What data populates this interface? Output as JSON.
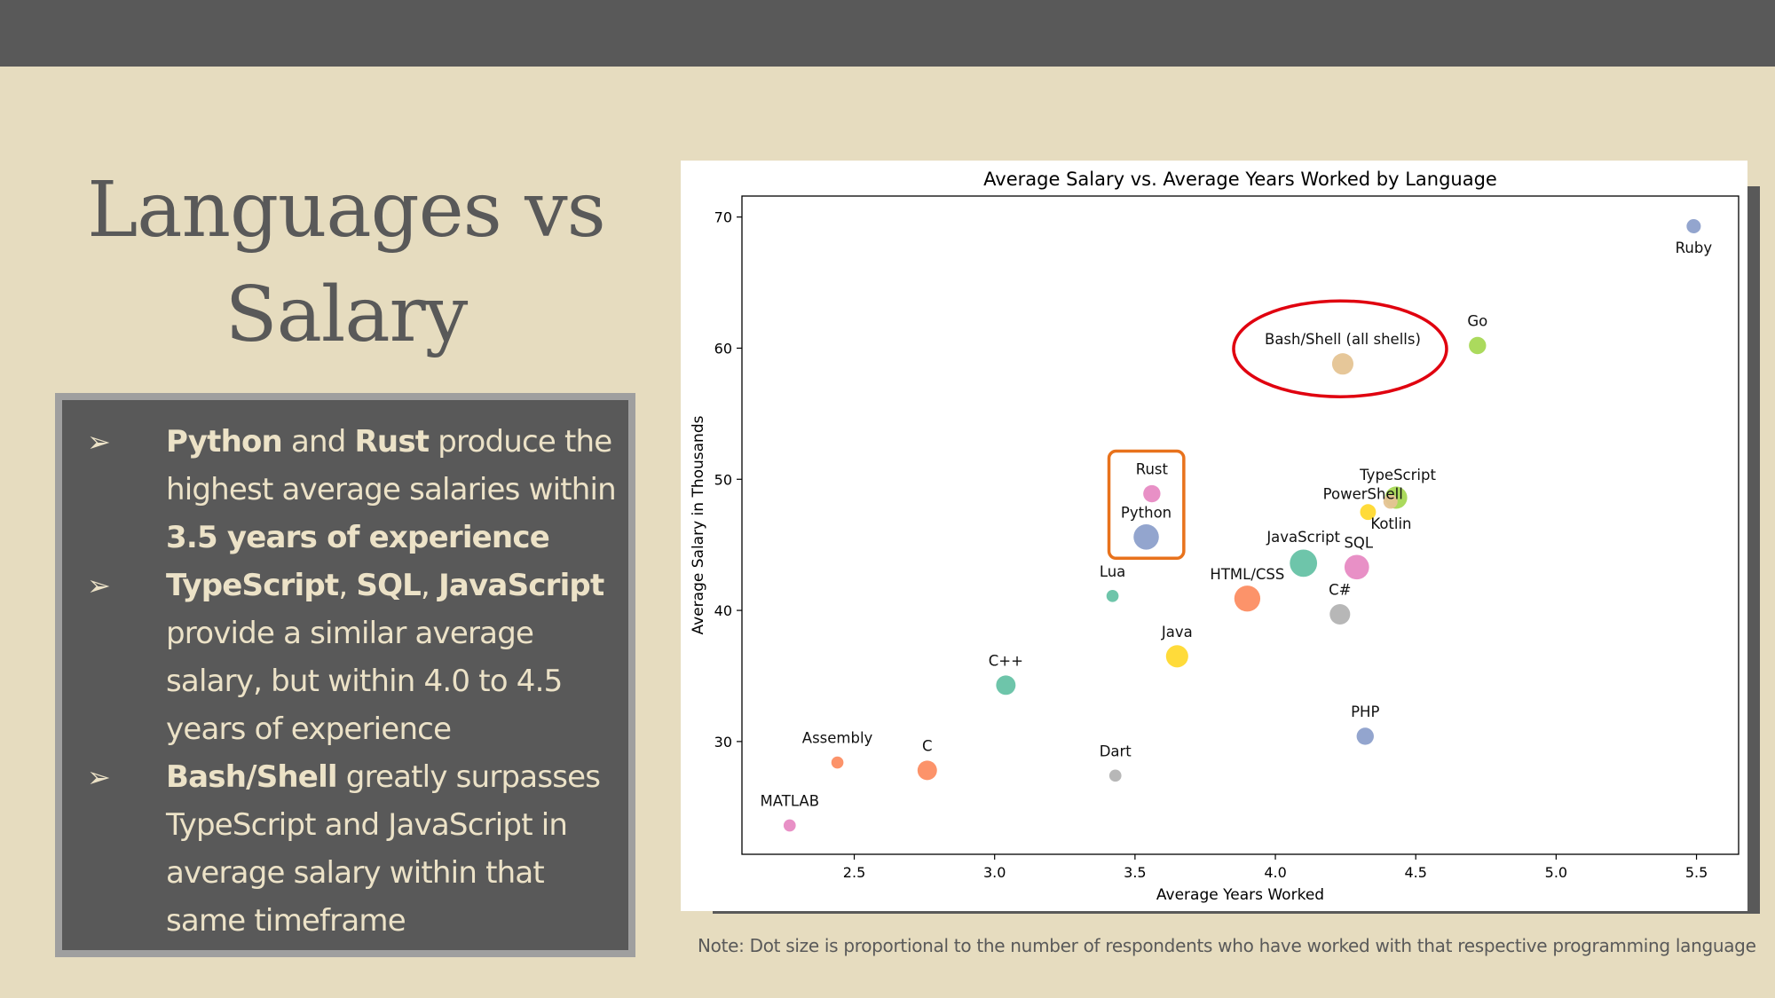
{
  "slide": {
    "title_line1": "Languages vs",
    "title_line2": "Salary",
    "bullets": [
      {
        "parts": [
          {
            "text": "Python",
            "bold": true
          },
          {
            "text": " and ",
            "bold": false
          },
          {
            "text": "Rust",
            "bold": true
          },
          {
            "text": " produce the highest average salaries within ",
            "bold": false
          },
          {
            "text": "3.5 years of experience",
            "bold": true
          }
        ]
      },
      {
        "parts": [
          {
            "text": "TypeScript",
            "bold": true
          },
          {
            "text": ", ",
            "bold": false
          },
          {
            "text": "SQL",
            "bold": true
          },
          {
            "text": ", ",
            "bold": false
          },
          {
            "text": "JavaScript",
            "bold": true
          },
          {
            "text": " provide a similar average salary, but within 4.0 to 4.5 years of experience",
            "bold": false
          }
        ]
      },
      {
        "parts": [
          {
            "text": "Bash/Shell",
            "bold": true
          },
          {
            "text": " greatly surpasses TypeScript and JavaScript in average salary within that same timeframe",
            "bold": false
          }
        ]
      }
    ],
    "bullet_glyph": "➢",
    "note": "Note: Dot size is proportional to the number of respondents who have worked with that respective programming language",
    "colors": {
      "background": "#e6dcbf",
      "dark": "#595959",
      "highlight_box": "#e8721c",
      "highlight_ellipse": "#e0000f"
    }
  },
  "chart_data": {
    "type": "scatter",
    "title": "Average Salary vs. Average Years Worked by Language",
    "xlabel": "Average Years Worked",
    "ylabel": "Average Salary in Thousands",
    "xlim": [
      2.1,
      5.65
    ],
    "ylim": [
      21.4,
      71.6
    ],
    "xticks": [
      2.5,
      3.0,
      3.5,
      4.0,
      4.5,
      5.0,
      5.5
    ],
    "yticks": [
      30,
      40,
      50,
      60,
      70
    ],
    "grid": false,
    "points": [
      {
        "name": "Ruby",
        "x": 5.49,
        "y": 69.3,
        "size": 0.2,
        "color": "#8da0cb"
      },
      {
        "name": "Go",
        "x": 4.72,
        "y": 60.2,
        "size": 0.4,
        "color": "#a6d854"
      },
      {
        "name": "Bash/Shell (all shells)",
        "x": 4.24,
        "y": 58.8,
        "size": 0.8,
        "color": "#e5c494"
      },
      {
        "name": "Rust",
        "x": 3.56,
        "y": 48.9,
        "size": 0.4,
        "color": "#e78ac3"
      },
      {
        "name": "Python",
        "x": 3.54,
        "y": 45.6,
        "size": 1.3,
        "color": "#8da0cb"
      },
      {
        "name": "TypeScript",
        "x": 4.43,
        "y": 48.6,
        "size": 0.9,
        "color": "#a6d854"
      },
      {
        "name": "PowerShell",
        "x": 4.41,
        "y": 48.3,
        "size": 0.2,
        "color": "#e5c494"
      },
      {
        "name": "Kotlin",
        "x": 4.33,
        "y": 47.5,
        "size": 0.3,
        "color": "#ffd92f"
      },
      {
        "name": "JavaScript",
        "x": 4.1,
        "y": 43.6,
        "size": 1.6,
        "color": "#66c2a5"
      },
      {
        "name": "SQL",
        "x": 4.29,
        "y": 43.3,
        "size": 1.2,
        "color": "#e78ac3"
      },
      {
        "name": "HTML/CSS",
        "x": 3.9,
        "y": 40.9,
        "size": 1.4,
        "color": "#fc8d62"
      },
      {
        "name": "C#",
        "x": 4.23,
        "y": 39.7,
        "size": 0.7,
        "color": "#b3b3b3"
      },
      {
        "name": "Lua",
        "x": 3.42,
        "y": 41.1,
        "size": 0.1,
        "color": "#66c2a5"
      },
      {
        "name": "Java",
        "x": 3.65,
        "y": 36.5,
        "size": 0.9,
        "color": "#ffd92f"
      },
      {
        "name": "C++",
        "x": 3.04,
        "y": 34.3,
        "size": 0.6,
        "color": "#66c2a5"
      },
      {
        "name": "PHP",
        "x": 4.32,
        "y": 30.4,
        "size": 0.4,
        "color": "#8da0cb"
      },
      {
        "name": "Assembly",
        "x": 2.44,
        "y": 28.4,
        "size": 0.1,
        "color": "#fc8d62"
      },
      {
        "name": "C",
        "x": 2.76,
        "y": 27.8,
        "size": 0.6,
        "color": "#fc8d62"
      },
      {
        "name": "Dart",
        "x": 3.43,
        "y": 27.4,
        "size": 0.1,
        "color": "#b3b3b3"
      },
      {
        "name": "MATLAB",
        "x": 2.27,
        "y": 23.6,
        "size": 0.1,
        "color": "#e78ac3"
      }
    ],
    "annotations": [
      {
        "type": "box",
        "around": [
          "Rust",
          "Python"
        ],
        "color": "#e8721c"
      },
      {
        "type": "ellipse",
        "around": [
          "Bash/Shell (all shells)"
        ],
        "color": "#e0000f"
      }
    ]
  }
}
